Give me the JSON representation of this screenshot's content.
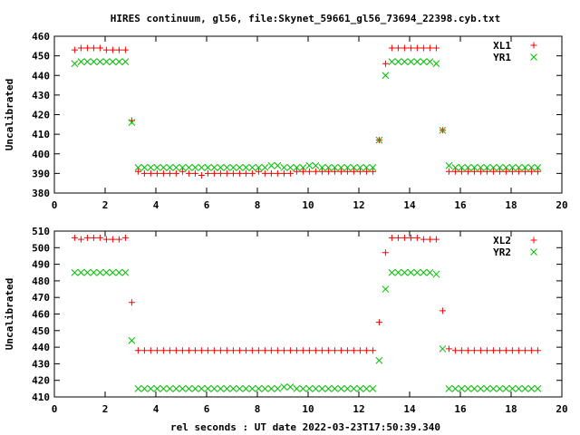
{
  "title": "HIRES continuum, gl56, file:Skynet_59661_gl56_73694_22398.cyb.txt",
  "xlabel": "rel seconds : UT date 2022-03-23T17:50:39.340",
  "colors": {
    "red": "#ff0000",
    "green": "#00c000",
    "axis": "#000000"
  },
  "chart_data": [
    {
      "type": "scatter",
      "ylabel": "Uncalibrated",
      "xlim": [
        0,
        20
      ],
      "ylim": [
        380,
        460
      ],
      "xticks": [
        0,
        2,
        4,
        6,
        8,
        10,
        12,
        14,
        16,
        18,
        20
      ],
      "yticks": [
        380,
        390,
        400,
        410,
        420,
        430,
        440,
        450,
        460
      ],
      "legend_position": "top-right",
      "series": [
        {
          "name": "XL1",
          "marker": "plus",
          "color": "#ff0000",
          "x": [
            0.8,
            1.05,
            1.3,
            1.55,
            1.8,
            2.05,
            2.3,
            2.55,
            2.8,
            3.05,
            3.3,
            3.55,
            3.8,
            4.05,
            4.3,
            4.55,
            4.8,
            5.05,
            5.3,
            5.55,
            5.8,
            6.05,
            6.3,
            6.55,
            6.8,
            7.05,
            7.3,
            7.55,
            7.8,
            8.05,
            8.3,
            8.55,
            8.8,
            9.05,
            9.3,
            9.55,
            9.8,
            10.05,
            10.3,
            10.55,
            10.8,
            11.05,
            11.3,
            11.55,
            11.8,
            12.05,
            12.3,
            12.55,
            12.8,
            13.05,
            13.3,
            13.55,
            13.8,
            14.05,
            14.3,
            14.55,
            14.8,
            15.05,
            15.3,
            15.55,
            15.8,
            16.05,
            16.3,
            16.55,
            16.8,
            17.05,
            17.3,
            17.55,
            17.8,
            18.05,
            18.3,
            18.55,
            18.8,
            19.05
          ],
          "y": [
            453,
            454,
            454,
            454,
            454,
            453,
            453,
            453,
            453,
            417,
            391,
            390,
            390,
            390,
            390,
            390,
            390,
            391,
            390,
            390,
            389,
            390,
            390,
            390,
            390,
            390,
            390,
            390,
            390,
            391,
            390,
            390,
            390,
            390,
            390,
            391,
            391,
            391,
            391,
            391,
            391,
            391,
            391,
            391,
            391,
            391,
            391,
            391,
            407,
            446,
            454,
            454,
            454,
            454,
            454,
            454,
            454,
            454,
            412,
            391,
            391,
            391,
            391,
            391,
            391,
            391,
            391,
            391,
            391,
            391,
            391,
            391,
            391,
            391
          ]
        },
        {
          "name": "YR1",
          "marker": "cross",
          "color": "#00c000",
          "x": [
            0.8,
            1.05,
            1.3,
            1.55,
            1.8,
            2.05,
            2.3,
            2.55,
            2.8,
            3.05,
            3.3,
            3.55,
            3.8,
            4.05,
            4.3,
            4.55,
            4.8,
            5.05,
            5.3,
            5.55,
            5.8,
            6.05,
            6.3,
            6.55,
            6.8,
            7.05,
            7.3,
            7.55,
            7.8,
            8.05,
            8.3,
            8.55,
            8.8,
            9.05,
            9.3,
            9.55,
            9.8,
            10.05,
            10.3,
            10.55,
            10.8,
            11.05,
            11.3,
            11.55,
            11.8,
            12.05,
            12.3,
            12.55,
            12.8,
            13.05,
            13.3,
            13.55,
            13.8,
            14.05,
            14.3,
            14.55,
            14.8,
            15.05,
            15.3,
            15.55,
            15.8,
            16.05,
            16.3,
            16.55,
            16.8,
            17.05,
            17.3,
            17.55,
            17.8,
            18.05,
            18.3,
            18.55,
            18.8,
            19.05
          ],
          "y": [
            446,
            447,
            447,
            447,
            447,
            447,
            447,
            447,
            447,
            416,
            393,
            393,
            393,
            393,
            393,
            393,
            393,
            393,
            393,
            393,
            393,
            393,
            393,
            393,
            393,
            393,
            393,
            393,
            393,
            393,
            393,
            394,
            394,
            393,
            393,
            393,
            393,
            394,
            394,
            393,
            393,
            393,
            393,
            393,
            393,
            393,
            393,
            393,
            407,
            440,
            447,
            447,
            447,
            447,
            447,
            447,
            447,
            446,
            412,
            394,
            393,
            393,
            393,
            393,
            393,
            393,
            393,
            393,
            393,
            393,
            393,
            393,
            393,
            393
          ]
        }
      ]
    },
    {
      "type": "scatter",
      "ylabel": "Uncalibrated",
      "xlim": [
        0,
        20
      ],
      "ylim": [
        410,
        510
      ],
      "xticks": [
        0,
        2,
        4,
        6,
        8,
        10,
        12,
        14,
        16,
        18,
        20
      ],
      "yticks": [
        410,
        420,
        430,
        440,
        450,
        460,
        470,
        480,
        490,
        500,
        510
      ],
      "legend_position": "top-right",
      "series": [
        {
          "name": "XL2",
          "marker": "plus",
          "color": "#ff0000",
          "x": [
            0.8,
            1.05,
            1.3,
            1.55,
            1.8,
            2.05,
            2.3,
            2.55,
            2.8,
            3.05,
            3.3,
            3.55,
            3.8,
            4.05,
            4.3,
            4.55,
            4.8,
            5.05,
            5.3,
            5.55,
            5.8,
            6.05,
            6.3,
            6.55,
            6.8,
            7.05,
            7.3,
            7.55,
            7.8,
            8.05,
            8.3,
            8.55,
            8.8,
            9.05,
            9.3,
            9.55,
            9.8,
            10.05,
            10.3,
            10.55,
            10.8,
            11.05,
            11.3,
            11.55,
            11.8,
            12.05,
            12.3,
            12.55,
            12.8,
            13.05,
            13.3,
            13.55,
            13.8,
            14.05,
            14.3,
            14.55,
            14.8,
            15.05,
            15.3,
            15.55,
            15.8,
            16.05,
            16.3,
            16.55,
            16.8,
            17.05,
            17.3,
            17.55,
            17.8,
            18.05,
            18.3,
            18.55,
            18.8,
            19.05
          ],
          "y": [
            506,
            505,
            506,
            506,
            506,
            505,
            505,
            505,
            506,
            467,
            438,
            438,
            438,
            438,
            438,
            438,
            438,
            438,
            438,
            438,
            438,
            438,
            438,
            438,
            438,
            438,
            438,
            438,
            438,
            438,
            438,
            438,
            438,
            438,
            438,
            438,
            438,
            438,
            438,
            438,
            438,
            438,
            438,
            438,
            438,
            438,
            438,
            438,
            455,
            497,
            506,
            506,
            506,
            506,
            506,
            505,
            505,
            505,
            462,
            439,
            438,
            438,
            438,
            438,
            438,
            438,
            438,
            438,
            438,
            438,
            438,
            438,
            438,
            438
          ]
        },
        {
          "name": "YR2",
          "marker": "cross",
          "color": "#00c000",
          "x": [
            0.8,
            1.05,
            1.3,
            1.55,
            1.8,
            2.05,
            2.3,
            2.55,
            2.8,
            3.05,
            3.3,
            3.55,
            3.8,
            4.05,
            4.3,
            4.55,
            4.8,
            5.05,
            5.3,
            5.55,
            5.8,
            6.05,
            6.3,
            6.55,
            6.8,
            7.05,
            7.3,
            7.55,
            7.8,
            8.05,
            8.3,
            8.55,
            8.8,
            9.05,
            9.3,
            9.55,
            9.8,
            10.05,
            10.3,
            10.55,
            10.8,
            11.05,
            11.3,
            11.55,
            11.8,
            12.05,
            12.3,
            12.55,
            12.8,
            13.05,
            13.3,
            13.55,
            13.8,
            14.05,
            14.3,
            14.55,
            14.8,
            15.05,
            15.3,
            15.55,
            15.8,
            16.05,
            16.3,
            16.55,
            16.8,
            17.05,
            17.3,
            17.55,
            17.8,
            18.05,
            18.3,
            18.55,
            18.8,
            19.05
          ],
          "y": [
            485,
            485,
            485,
            485,
            485,
            485,
            485,
            485,
            485,
            444,
            415,
            415,
            415,
            415,
            415,
            415,
            415,
            415,
            415,
            415,
            415,
            415,
            415,
            415,
            415,
            415,
            415,
            415,
            415,
            415,
            415,
            415,
            415,
            416,
            416,
            415,
            415,
            415,
            415,
            415,
            415,
            415,
            415,
            415,
            415,
            415,
            415,
            415,
            432,
            475,
            485,
            485,
            485,
            485,
            485,
            485,
            485,
            484,
            439,
            415,
            415,
            415,
            415,
            415,
            415,
            415,
            415,
            415,
            415,
            415,
            415,
            415,
            415,
            415
          ]
        }
      ]
    }
  ]
}
